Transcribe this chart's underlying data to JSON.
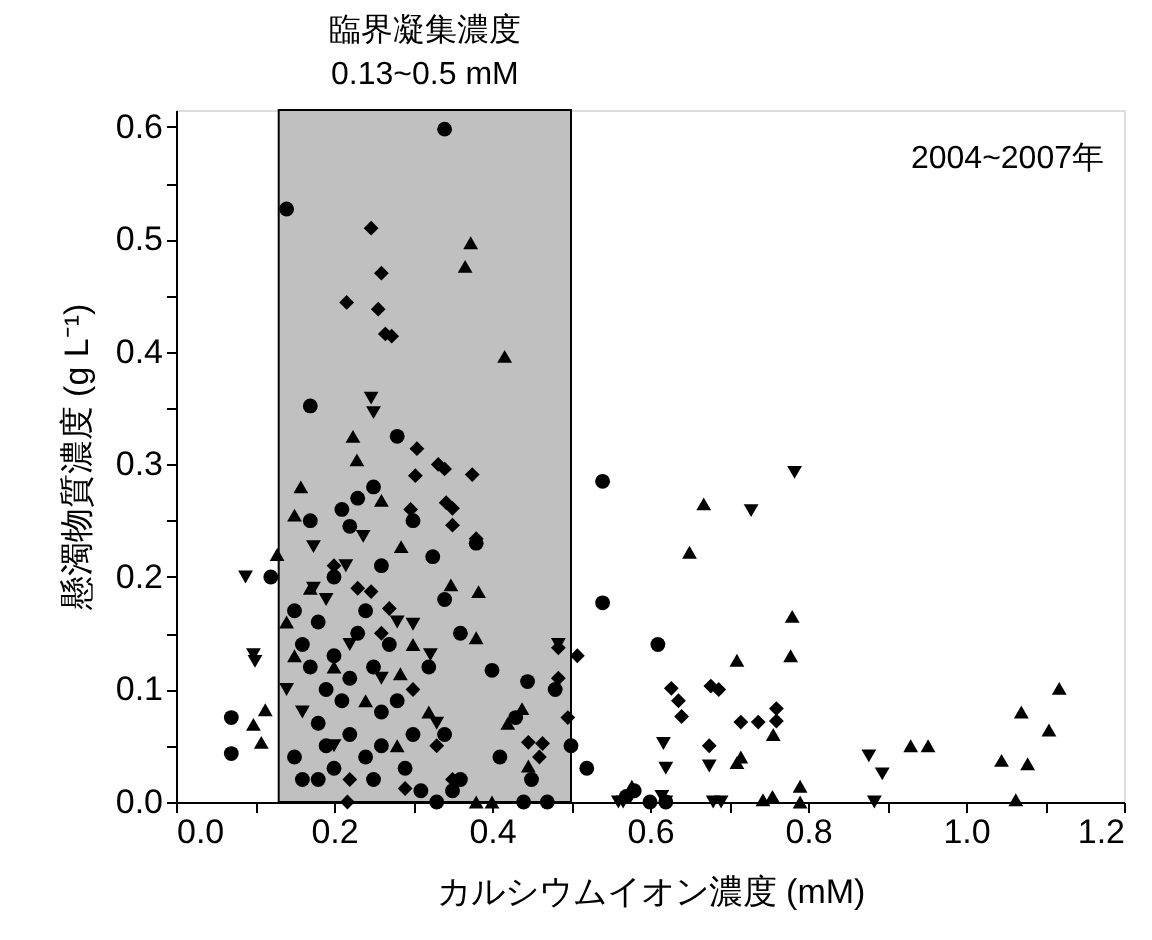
{
  "chart_data": {
    "type": "scatter",
    "xlabel": "カルシウムイオン濃度 (mM)",
    "ylabel": "懸濁物質濃度 (g L⁻¹)",
    "xlim": [
      0,
      1.2
    ],
    "ylim": [
      0,
      0.615
    ],
    "xticks": [
      {
        "value": 0,
        "label": "0.0"
      },
      {
        "value": 0.1,
        "label": null
      },
      {
        "value": 0.2,
        "label": "0.2"
      },
      {
        "value": 0.3,
        "label": null
      },
      {
        "value": 0.4,
        "label": "0.4"
      },
      {
        "value": 0.5,
        "label": null
      },
      {
        "value": 0.6,
        "label": "0.6"
      },
      {
        "value": 0.7,
        "label": null
      },
      {
        "value": 0.8,
        "label": "0.8"
      },
      {
        "value": 0.9,
        "label": null
      },
      {
        "value": 1.0,
        "label": "1.0"
      },
      {
        "value": 1.1,
        "label": null
      },
      {
        "value": 1.2,
        "label": "1.2"
      }
    ],
    "yticks": [
      {
        "value": 0,
        "label": "0.0"
      },
      {
        "value": 0.05,
        "label": null
      },
      {
        "value": 0.1,
        "label": "0.1"
      },
      {
        "value": 0.15,
        "label": null
      },
      {
        "value": 0.2,
        "label": "0.2"
      },
      {
        "value": 0.25,
        "label": null
      },
      {
        "value": 0.3,
        "label": "0.3"
      },
      {
        "value": 0.35,
        "label": null
      },
      {
        "value": 0.4,
        "label": "0.4"
      },
      {
        "value": 0.45,
        "label": null
      },
      {
        "value": 0.5,
        "label": "0.5"
      },
      {
        "value": 0.55,
        "label": null
      },
      {
        "value": 0.6,
        "label": "0.6"
      }
    ],
    "grid": false,
    "annotations": [
      "2004~2007年"
    ],
    "bands": [
      {
        "axis": "x",
        "from": 0.13,
        "to": 0.5,
        "label": "臨界凝集濃度\n0.13~0.5 mM",
        "color": "#c0c0c0"
      }
    ],
    "series": [
      {
        "color": "#000000",
        "marker": "circle",
        "x": [
          0.07,
          0.07,
          0.12,
          0.14,
          0.17,
          0.28,
          0.34,
          0.54,
          0.54,
          0.61,
          0.15,
          0.16,
          0.17,
          0.18,
          0.19,
          0.2,
          0.21,
          0.22,
          0.23,
          0.24,
          0.25,
          0.26,
          0.27,
          0.18,
          0.19,
          0.2,
          0.22,
          0.24,
          0.26,
          0.28,
          0.29,
          0.3,
          0.21,
          0.23,
          0.25,
          0.22,
          0.26,
          0.3,
          0.2,
          0.17,
          0.15,
          0.16,
          0.18,
          0.25,
          0.31,
          0.33,
          0.35,
          0.38,
          0.34,
          0.36,
          0.32,
          0.325,
          0.4,
          0.445,
          0.34,
          0.41,
          0.43,
          0.45,
          0.47,
          0.48,
          0.5,
          0.52,
          0.57,
          0.6,
          0.62,
          0.58,
          0.44,
          0.36
        ],
        "values": [
          0.075,
          0.043,
          0.2,
          0.527,
          0.352,
          0.325,
          0.598,
          0.285,
          0.177,
          0.14,
          0.17,
          0.14,
          0.12,
          0.16,
          0.1,
          0.13,
          0.09,
          0.11,
          0.15,
          0.17,
          0.12,
          0.08,
          0.14,
          0.07,
          0.05,
          0.03,
          0.06,
          0.04,
          0.05,
          0.09,
          0.03,
          0.06,
          0.26,
          0.27,
          0.28,
          0.245,
          0.21,
          0.25,
          0.2,
          0.25,
          0.04,
          0.02,
          0.02,
          0.02,
          0.01,
          0.0,
          0.01,
          0.23,
          0.18,
          0.15,
          0.12,
          0.218,
          0.117,
          0.107,
          0.06,
          0.04,
          0.075,
          0.02,
          0.0,
          0.1,
          0.05,
          0.03,
          0.005,
          0.0,
          0.0,
          0.01,
          0.0,
          0.02
        ]
      },
      {
        "color": "#000000",
        "marker": "triangle",
        "x": [
          0.373,
          0.366,
          0.416,
          0.224,
          0.229,
          0.158,
          0.15,
          0.26,
          0.285,
          0.128,
          0.348,
          0.383,
          0.38,
          0.284,
          0.113,
          0.098,
          0.108,
          0.438,
          0.42,
          0.446,
          0.577,
          0.668,
          0.65,
          0.78,
          0.778,
          0.71,
          0.71,
          0.715,
          0.756,
          0.743,
          0.755,
          0.79,
          0.79,
          0.93,
          0.952,
          1.045,
          1.078,
          1.07,
          1.105,
          1.118,
          1.063,
          0.14,
          0.15,
          0.2,
          0.24,
          0.3,
          0.32,
          0.28,
          0.38,
          0.4,
          0.17
        ],
        "values": [
          0.497,
          0.476,
          0.396,
          0.325,
          0.304,
          0.28,
          0.255,
          0.268,
          0.227,
          0.22,
          0.193,
          0.187,
          0.146,
          0.114,
          0.082,
          0.069,
          0.053,
          0.083,
          0.07,
          0.032,
          0.014,
          0.265,
          0.222,
          0.165,
          0.13,
          0.126,
          0.035,
          0.04,
          0.06,
          0.002,
          0.005,
          0.014,
          0.0,
          0.05,
          0.05,
          0.037,
          0.034,
          0.08,
          0.064,
          0.101,
          0.002,
          0.16,
          0.13,
          0.12,
          0.09,
          0.14,
          0.08,
          0.05,
          0.0,
          0.0,
          0.19
        ]
      },
      {
        "color": "#000000",
        "marker": "triangle-down",
        "x": [
          0.247,
          0.25,
          0.088,
          0.098,
          0.1,
          0.174,
          0.237,
          0.215,
          0.3,
          0.322,
          0.174,
          0.484,
          0.56,
          0.783,
          0.728,
          0.617,
          0.62,
          0.675,
          0.615,
          0.62,
          0.68,
          0.69,
          0.566,
          0.877,
          0.894,
          0.884,
          0.14,
          0.16,
          0.19,
          0.22,
          0.26,
          0.28,
          0.2,
          0.33
        ],
        "values": [
          0.359,
          0.346,
          0.2,
          0.131,
          0.125,
          0.227,
          0.236,
          0.21,
          0.158,
          0.131,
          0.19,
          0.14,
          0.0,
          0.293,
          0.259,
          0.052,
          0.03,
          0.032,
          0.005,
          0.0,
          0.0,
          0.0,
          0.0,
          0.041,
          0.025,
          0.0,
          0.1,
          0.08,
          0.18,
          0.14,
          0.11,
          0.16,
          0.05,
          0.07
        ]
      },
      {
        "color": "#000000",
        "marker": "diamond",
        "x": [
          0.247,
          0.26,
          0.216,
          0.256,
          0.265,
          0.273,
          0.305,
          0.303,
          0.332,
          0.34,
          0.375,
          0.297,
          0.342,
          0.35,
          0.35,
          0.38,
          0.247,
          0.27,
          0.484,
          0.508,
          0.484,
          0.496,
          0.446,
          0.464,
          0.46,
          0.217,
          0.29,
          0.627,
          0.636,
          0.64,
          0.677,
          0.683,
          0.687,
          0.715,
          0.737,
          0.76,
          0.76,
          0.675,
          0.2,
          0.23,
          0.26,
          0.3,
          0.33,
          0.35,
          0.22
        ],
        "values": [
          0.51,
          0.47,
          0.444,
          0.438,
          0.416,
          0.414,
          0.314,
          0.29,
          0.3,
          0.296,
          0.291,
          0.26,
          0.266,
          0.261,
          0.246,
          0.234,
          0.187,
          0.172,
          0.137,
          0.13,
          0.11,
          0.075,
          0.053,
          0.052,
          0.04,
          0.0,
          0.012,
          0.101,
          0.09,
          0.076,
          0.103,
          null,
          0.1,
          0.071,
          0.071,
          0.083,
          0.072,
          0.05,
          0.21,
          0.19,
          0.15,
          0.1,
          0.05,
          0.02,
          0.02
        ]
      }
    ]
  }
}
